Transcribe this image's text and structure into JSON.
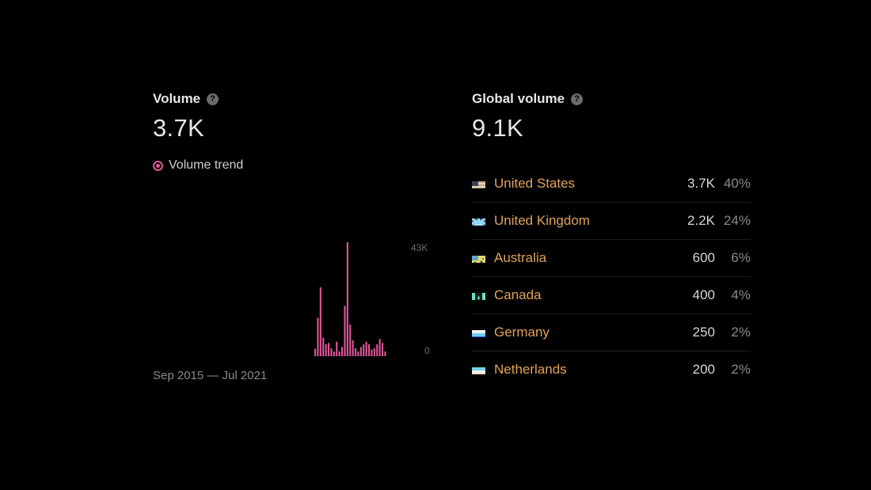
{
  "volume": {
    "title": "Volume",
    "help_icon": "?",
    "value": "3.7K",
    "legend_label": "Volume trend",
    "date_range": "Sep 2015 — Jul 2021",
    "accent_color": "#e0559a"
  },
  "chart_data": {
    "type": "bar",
    "series": [
      {
        "values": [
          0,
          0,
          0,
          0,
          0,
          0,
          0,
          0,
          0,
          0,
          0,
          0,
          0,
          0,
          0,
          0,
          0,
          0,
          0,
          0,
          0,
          0,
          0,
          0,
          0,
          0,
          0,
          0,
          0,
          0,
          0,
          0,
          0,
          0,
          0,
          0,
          0,
          0,
          0,
          0,
          0,
          0,
          0,
          0,
          0,
          0,
          0,
          0,
          0,
          0,
          0,
          0,
          0,
          0,
          0,
          0,
          0,
          0,
          0,
          0,
          2800,
          14500,
          26000,
          7000,
          4500,
          5000,
          3000,
          1800,
          5500,
          1800,
          3500,
          19000,
          43000,
          12000,
          6000,
          3000,
          1800,
          3500,
          4500,
          5500,
          4500,
          2500,
          3000,
          4500,
          6500,
          5000,
          1800
        ]
      }
    ],
    "y_tick_labels": [
      "0",
      "43K"
    ],
    "ylim": [
      0,
      43000
    ],
    "x_range_label": "Sep 2015 — Jul 2021"
  },
  "global": {
    "title": "Global volume",
    "help_icon": "?",
    "value": "9.1K",
    "countries": [
      {
        "name": "United States",
        "volume": "3.7K",
        "share": "40%",
        "flag": "us-flag-icon"
      },
      {
        "name": "United Kingdom",
        "volume": "2.2K",
        "share": "24%",
        "flag": "uk-flag-icon"
      },
      {
        "name": "Australia",
        "volume": "600",
        "share": "6%",
        "flag": "au-flag-icon"
      },
      {
        "name": "Canada",
        "volume": "400",
        "share": "4%",
        "flag": "ca-flag-icon"
      },
      {
        "name": "Germany",
        "volume": "250",
        "share": "2%",
        "flag": "de-flag-icon"
      },
      {
        "name": "Netherlands",
        "volume": "200",
        "share": "2%",
        "flag": "nl-flag-icon"
      }
    ]
  }
}
